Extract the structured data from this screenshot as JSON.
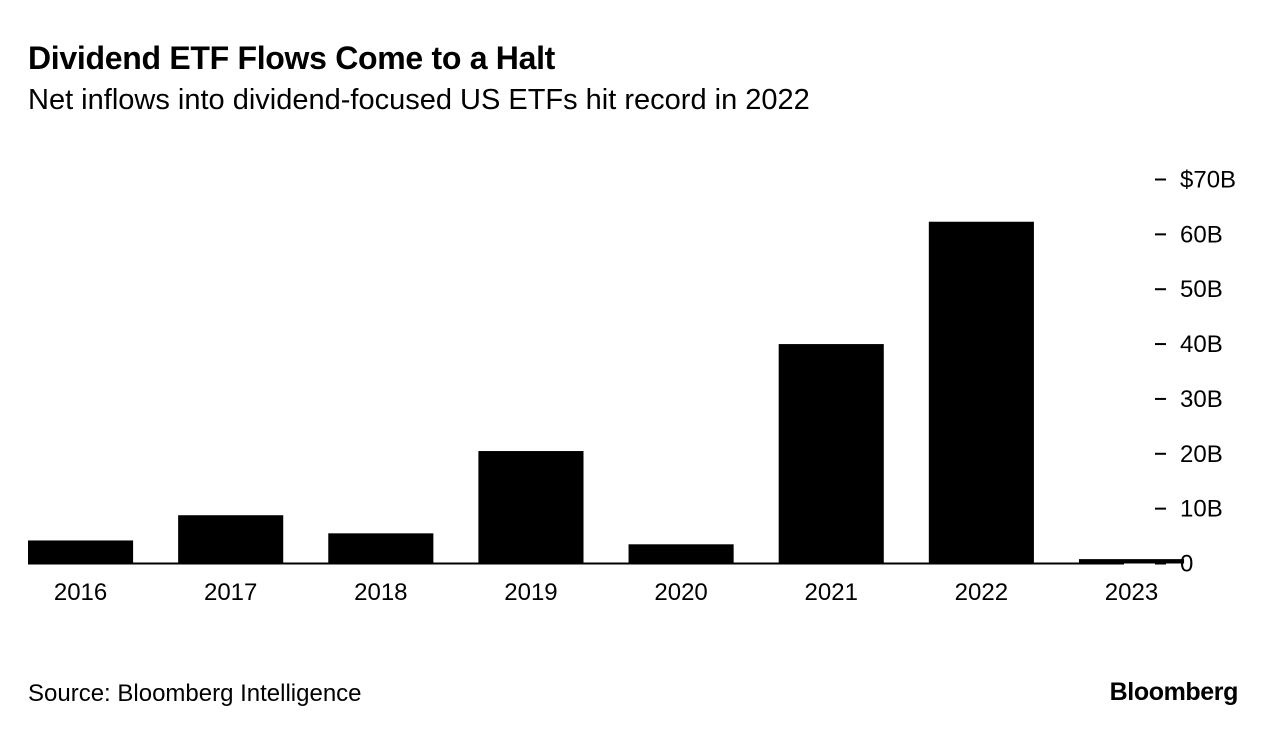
{
  "header": {
    "title": "Dividend ETF Flows Come to a Halt",
    "subtitle": "Net inflows into dividend-focused US ETFs hit record in 2022"
  },
  "footer": {
    "source": "Source: Bloomberg Intelligence",
    "brand": "Bloomberg"
  },
  "chart_data": {
    "type": "bar",
    "categories": [
      "2016",
      "2017",
      "2018",
      "2019",
      "2020",
      "2021",
      "2022",
      "2023"
    ],
    "values": [
      4.2,
      8.8,
      5.5,
      20.5,
      3.5,
      40,
      62.3,
      0.8
    ],
    "ylim": [
      0,
      70
    ],
    "yticks": [
      0,
      10,
      20,
      30,
      40,
      50,
      60,
      70
    ],
    "ytick_labels": [
      "0",
      "10B",
      "20B",
      "30B",
      "40B",
      "50B",
      "60B",
      "$70B"
    ],
    "y_axis_side": "right",
    "grid": false,
    "bar_color": "#000000"
  }
}
